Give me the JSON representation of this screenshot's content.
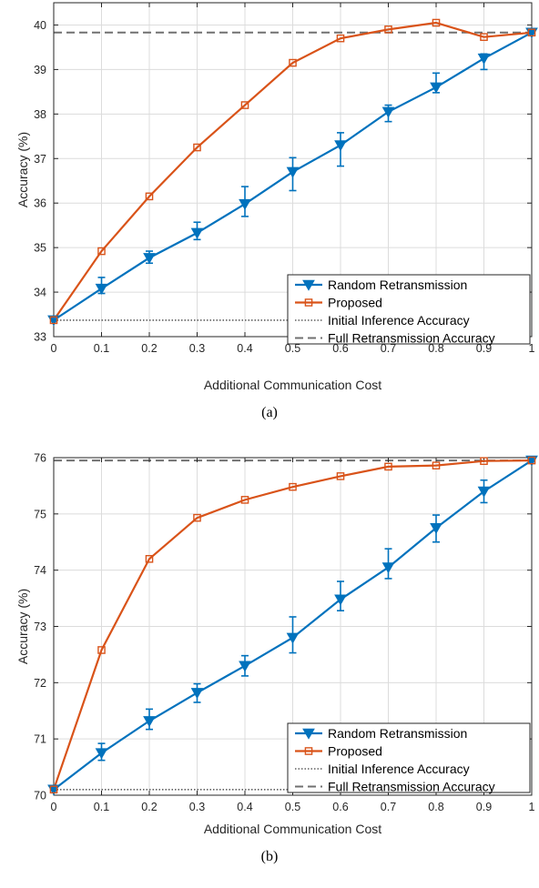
{
  "colors": {
    "random": "#0072BD",
    "proposed": "#D95319",
    "initial": "#606060",
    "full": "#707070",
    "grid": "#dcdcdc",
    "axis": "#262626"
  },
  "chart_data": [
    {
      "type": "line",
      "caption": "(a)",
      "xlabel": "Additional Communication Cost",
      "ylabel": "Accuracy (%)",
      "xlim": [
        0,
        1
      ],
      "ylim": [
        33,
        40.5
      ],
      "xticks": [
        0,
        0.1,
        0.2,
        0.3,
        0.4,
        0.5,
        0.6,
        0.7,
        0.8,
        0.9,
        1
      ],
      "xtick_labels": [
        "0",
        "0.1",
        "0.2",
        "0.3",
        "0.4",
        "0.5",
        "0.6",
        "0.7",
        "0.8",
        "0.9",
        "1"
      ],
      "yticks": [
        33,
        34,
        35,
        36,
        37,
        38,
        39,
        40
      ],
      "ytick_labels": [
        "33",
        "34",
        "35",
        "36",
        "37",
        "38",
        "39",
        "40"
      ],
      "grid": true,
      "legend_position": "bottom-right",
      "legend": [
        "Random Retransmission",
        "Proposed",
        "Initial Inference Accuracy",
        "Full Retransmission Accuracy"
      ],
      "x": [
        0,
        0.1,
        0.2,
        0.3,
        0.4,
        0.5,
        0.6,
        0.7,
        0.8,
        0.9,
        1
      ],
      "series": [
        {
          "name": "Random Retransmission",
          "marker": "triangle-down",
          "values": [
            33.37,
            34.08,
            34.77,
            35.33,
            35.98,
            36.7,
            37.3,
            38.05,
            38.6,
            39.25,
            39.83
          ],
          "err_low": [
            33.37,
            33.97,
            34.65,
            35.18,
            35.7,
            36.28,
            36.83,
            37.83,
            38.48,
            39.0,
            39.83
          ],
          "err_high": [
            33.37,
            34.33,
            34.92,
            35.57,
            36.37,
            37.02,
            37.58,
            38.2,
            38.92,
            39.35,
            39.83
          ]
        },
        {
          "name": "Proposed",
          "marker": "square",
          "values": [
            33.37,
            34.92,
            36.15,
            37.25,
            38.2,
            39.15,
            39.7,
            39.9,
            40.05,
            39.73,
            39.83
          ]
        }
      ],
      "reference_lines": [
        {
          "name": "Initial Inference Accuracy",
          "y": 33.37,
          "style": "dotted"
        },
        {
          "name": "Full Retransmission Accuracy",
          "y": 39.83,
          "style": "dashed"
        }
      ]
    },
    {
      "type": "line",
      "caption": "(b)",
      "xlabel": "Additional Communication Cost",
      "ylabel": "Accuracy (%)",
      "xlim": [
        0,
        1
      ],
      "ylim": [
        70,
        76
      ],
      "xticks": [
        0,
        0.1,
        0.2,
        0.3,
        0.4,
        0.5,
        0.6,
        0.7,
        0.8,
        0.9,
        1
      ],
      "xtick_labels": [
        "0",
        "0.1",
        "0.2",
        "0.3",
        "0.4",
        "0.5",
        "0.6",
        "0.7",
        "0.8",
        "0.9",
        "1"
      ],
      "yticks": [
        70,
        71,
        72,
        73,
        74,
        75,
        76
      ],
      "ytick_labels": [
        "70",
        "71",
        "72",
        "73",
        "74",
        "75",
        "76"
      ],
      "grid": true,
      "legend_position": "bottom-right",
      "legend": [
        "Random Retransmission",
        "Proposed",
        "Initial Inference Accuracy",
        "Full Retransmission Accuracy"
      ],
      "x": [
        0,
        0.1,
        0.2,
        0.3,
        0.4,
        0.5,
        0.6,
        0.7,
        0.8,
        0.9,
        1
      ],
      "series": [
        {
          "name": "Random Retransmission",
          "marker": "triangle-down",
          "values": [
            70.1,
            70.75,
            71.32,
            71.82,
            72.3,
            72.8,
            73.48,
            74.05,
            74.75,
            75.4,
            75.95
          ],
          "err_low": [
            70.1,
            70.62,
            71.17,
            71.65,
            72.12,
            72.53,
            73.28,
            73.85,
            74.5,
            75.2,
            75.95
          ],
          "err_high": [
            70.1,
            70.92,
            71.53,
            71.98,
            72.48,
            73.17,
            73.8,
            74.38,
            74.98,
            75.6,
            75.95
          ]
        },
        {
          "name": "Proposed",
          "marker": "square",
          "values": [
            70.1,
            72.58,
            74.2,
            74.93,
            75.25,
            75.48,
            75.67,
            75.84,
            75.86,
            75.94,
            75.95
          ]
        }
      ],
      "reference_lines": [
        {
          "name": "Initial Inference Accuracy",
          "y": 70.1,
          "style": "dotted"
        },
        {
          "name": "Full Retransmission Accuracy",
          "y": 75.95,
          "style": "dashed"
        }
      ]
    }
  ]
}
